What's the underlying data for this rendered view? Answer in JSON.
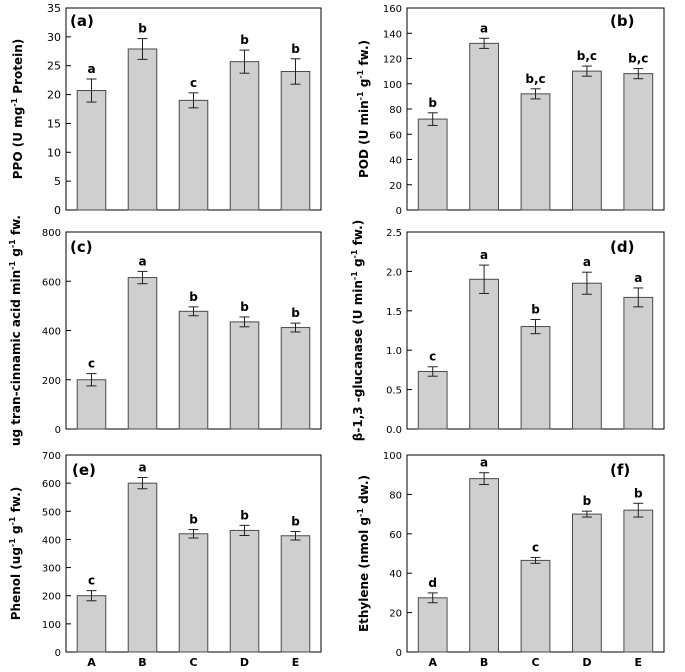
{
  "chart_data": [
    {
      "type": "bar",
      "panel_label": "(a)",
      "ylabel_parts": [
        [
          "PPO (U mg",
          false
        ],
        [
          "-1",
          true
        ],
        [
          " Protein)",
          false
        ]
      ],
      "ylim": [
        0,
        35
      ],
      "yticks": [
        0,
        5,
        10,
        15,
        20,
        25,
        30,
        35
      ],
      "categories": [
        "A",
        "B",
        "C",
        "D",
        "E"
      ],
      "show_xticks": false,
      "values": [
        20.7,
        27.9,
        19.0,
        25.7,
        24.0
      ],
      "errors": [
        2.0,
        1.8,
        1.3,
        2.0,
        2.2
      ],
      "letters": [
        "a",
        "b",
        "c",
        "b",
        "b"
      ]
    },
    {
      "type": "bar",
      "panel_label": "(b)",
      "ylabel_parts": [
        [
          "POD (U min",
          false
        ],
        [
          "-1",
          true
        ],
        [
          " g",
          false
        ],
        [
          "-1",
          true
        ],
        [
          " fw.)",
          false
        ]
      ],
      "ylim": [
        0,
        160
      ],
      "yticks": [
        0,
        20,
        40,
        60,
        80,
        100,
        120,
        140,
        160
      ],
      "categories": [
        "A",
        "B",
        "C",
        "D",
        "E"
      ],
      "show_xticks": false,
      "values": [
        72,
        132,
        92,
        110,
        108
      ],
      "errors": [
        5,
        4,
        4,
        4,
        4
      ],
      "letters": [
        "b",
        "a",
        "b,c",
        "b,c",
        "b,c"
      ]
    },
    {
      "type": "bar",
      "panel_label": "(c)",
      "ylabel_parts": [
        [
          "ug tran-cinnamic acid min",
          false
        ],
        [
          "-1",
          true
        ],
        [
          " g",
          false
        ],
        [
          "-1",
          true
        ],
        [
          " fw.",
          false
        ]
      ],
      "ylim": [
        0,
        800
      ],
      "yticks": [
        0,
        200,
        400,
        600,
        800
      ],
      "categories": [
        "A",
        "B",
        "C",
        "D",
        "E"
      ],
      "show_xticks": false,
      "values": [
        200,
        615,
        478,
        435,
        412
      ],
      "errors": [
        25,
        25,
        18,
        20,
        18
      ],
      "letters": [
        "c",
        "a",
        "b",
        "b",
        "b"
      ]
    },
    {
      "type": "bar",
      "panel_label": "(d)",
      "ylabel_parts": [
        [
          "β-1,3 -glucanase (U min",
          false
        ],
        [
          "-1",
          true
        ],
        [
          " g",
          false
        ],
        [
          "-1",
          true
        ],
        [
          " fw.)",
          false
        ]
      ],
      "ylim": [
        0,
        2.5
      ],
      "yticks": [
        0.0,
        0.5,
        1.0,
        1.5,
        2.0,
        2.5
      ],
      "tick_format": "fixed1",
      "categories": [
        "A",
        "B",
        "C",
        "D",
        "E"
      ],
      "show_xticks": false,
      "values": [
        0.73,
        1.9,
        1.3,
        1.85,
        1.67
      ],
      "errors": [
        0.06,
        0.18,
        0.09,
        0.14,
        0.12
      ],
      "letters": [
        "c",
        "a",
        "b",
        "a",
        "a"
      ]
    },
    {
      "type": "bar",
      "panel_label": "(e)",
      "ylabel_parts": [
        [
          "Phenol (ug",
          false
        ],
        [
          "-1",
          true
        ],
        [
          " g",
          false
        ],
        [
          "-1",
          true
        ],
        [
          " fw.)",
          false
        ]
      ],
      "ylim": [
        0,
        700
      ],
      "yticks": [
        0,
        100,
        200,
        300,
        400,
        500,
        600,
        700
      ],
      "categories": [
        "A",
        "B",
        "C",
        "D",
        "E"
      ],
      "show_xticks": true,
      "values": [
        200,
        600,
        420,
        432,
        413
      ],
      "errors": [
        18,
        20,
        15,
        18,
        15
      ],
      "letters": [
        "c",
        "a",
        "b",
        "b",
        "b"
      ]
    },
    {
      "type": "bar",
      "panel_label": "(f)",
      "ylabel_parts": [
        [
          "Ethylene (nmol g",
          false
        ],
        [
          "-1",
          true
        ],
        [
          " dw.)",
          false
        ]
      ],
      "ylim": [
        0,
        100
      ],
      "yticks": [
        0,
        20,
        40,
        60,
        80,
        100
      ],
      "categories": [
        "A",
        "B",
        "C",
        "D",
        "E"
      ],
      "show_xticks": true,
      "values": [
        27.5,
        88,
        46.5,
        70,
        72
      ],
      "errors": [
        2.5,
        3,
        1.5,
        1.5,
        3.5
      ],
      "letters": [
        "d",
        "a",
        "c",
        "b",
        "b"
      ]
    }
  ],
  "colors": {
    "bar_fill": "#cfcfcf",
    "bar_stroke": "#4a4a4a",
    "axis": "#000000"
  }
}
